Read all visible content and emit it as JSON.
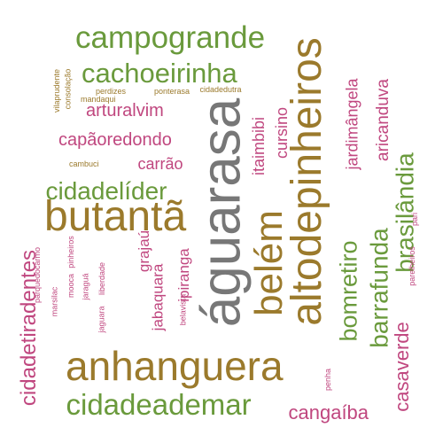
{
  "colors": {
    "green": "#6a9a3c",
    "brown": "#9b7a2c",
    "pink": "#c0477f",
    "gray": "#777777"
  },
  "words": [
    {
      "text": "águarasa",
      "color": "gray"
    },
    {
      "text": "altodepinheiros",
      "color": "brown"
    },
    {
      "text": "anhanguera",
      "color": "brown"
    },
    {
      "text": "butantã",
      "color": "brown"
    },
    {
      "text": "belém",
      "color": "brown"
    },
    {
      "text": "campogrande",
      "color": "green"
    },
    {
      "text": "cidadeademar",
      "color": "green"
    },
    {
      "text": "cachoeirinha",
      "color": "green"
    },
    {
      "text": "cidadelíder",
      "color": "green"
    },
    {
      "text": "brasilândia",
      "color": "green"
    },
    {
      "text": "barrafunda",
      "color": "green"
    },
    {
      "text": "bomretiro",
      "color": "green"
    },
    {
      "text": "capãoredondo",
      "color": "pink"
    },
    {
      "text": "cangaíba",
      "color": "pink"
    },
    {
      "text": "cidadetiradentes",
      "color": "pink"
    },
    {
      "text": "casaverde",
      "color": "pink"
    },
    {
      "text": "jardimângela",
      "color": "pink"
    },
    {
      "text": "aricanduva",
      "color": "pink"
    },
    {
      "text": "arturalvim",
      "color": "pink"
    },
    {
      "text": "carrão",
      "color": "pink"
    },
    {
      "text": "cursino",
      "color": "pink"
    },
    {
      "text": "itaimbibi",
      "color": "pink"
    },
    {
      "text": "ipiranga",
      "color": "pink"
    },
    {
      "text": "grajaú",
      "color": "pink"
    },
    {
      "text": "jabaquara",
      "color": "pink"
    },
    {
      "text": "vilaprudente",
      "color": "brown"
    },
    {
      "text": "consolação",
      "color": "brown"
    },
    {
      "text": "perdizes",
      "color": "brown"
    },
    {
      "text": "ponterasa",
      "color": "brown"
    },
    {
      "text": "cidadedutra",
      "color": "brown"
    },
    {
      "text": "mandaqui",
      "color": "brown"
    },
    {
      "text": "cambuci",
      "color": "brown"
    },
    {
      "text": "parquedocarmo",
      "color": "pink"
    },
    {
      "text": "marsilac",
      "color": "pink"
    },
    {
      "text": "mooca",
      "color": "pink"
    },
    {
      "text": "pinheiros",
      "color": "pink"
    },
    {
      "text": "jaraguá",
      "color": "pink"
    },
    {
      "text": "liberdade",
      "color": "pink"
    },
    {
      "text": "jaguara",
      "color": "pink"
    },
    {
      "text": "belavista",
      "color": "pink"
    },
    {
      "text": "penha",
      "color": "pink"
    },
    {
      "text": "pari",
      "color": "pink"
    },
    {
      "text": "parelheiros",
      "color": "pink"
    }
  ]
}
